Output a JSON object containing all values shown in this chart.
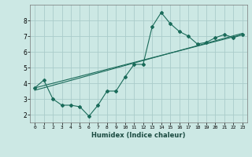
{
  "xlabel": "Humidex (Indice chaleur)",
  "xlim": [
    -0.5,
    23.5
  ],
  "ylim": [
    1.5,
    9.0
  ],
  "yticks": [
    2,
    3,
    4,
    5,
    6,
    7,
    8
  ],
  "xticks": [
    0,
    1,
    2,
    3,
    4,
    5,
    6,
    7,
    8,
    9,
    10,
    11,
    12,
    13,
    14,
    15,
    16,
    17,
    18,
    19,
    20,
    21,
    22,
    23
  ],
  "bg_color": "#cce8e4",
  "grid_color": "#aaccca",
  "line_color": "#1a6b5a",
  "line1_x": [
    0,
    1,
    2,
    3,
    4,
    5,
    6,
    7,
    8,
    9,
    10,
    11,
    12,
    13,
    14,
    15,
    16,
    17,
    18,
    19,
    20,
    21,
    22,
    23
  ],
  "line1_y": [
    3.7,
    4.2,
    3.0,
    2.6,
    2.6,
    2.5,
    1.9,
    2.6,
    3.5,
    3.5,
    4.4,
    5.2,
    5.2,
    7.6,
    8.5,
    7.8,
    7.3,
    7.0,
    6.5,
    6.6,
    6.9,
    7.1,
    6.9,
    7.1
  ],
  "line2_x": [
    0,
    23
  ],
  "line2_y": [
    3.7,
    7.1
  ],
  "line3_x": [
    0,
    23
  ],
  "line3_y": [
    3.55,
    7.18
  ]
}
